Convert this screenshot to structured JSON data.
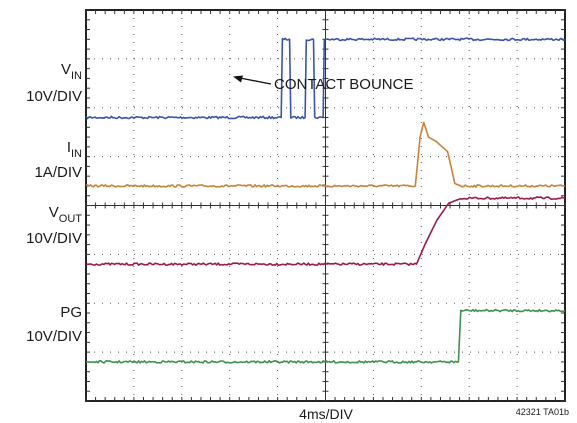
{
  "chart_data": {
    "type": "line",
    "title": "",
    "xlabel": "4ms/DIV",
    "ylabel": "",
    "x_unit": "ms",
    "x_range": [
      0,
      40
    ],
    "divisions": {
      "x": 10,
      "y": 8
    },
    "grid": true,
    "figure_code": "42321 TA01b",
    "annotation": {
      "text": "CONTACT BOUNCE"
    },
    "channels": [
      {
        "name": "VIN",
        "label_main": "V",
        "label_sub": "IN",
        "scale": "10V/DIV",
        "color": "#3a55a8"
      },
      {
        "name": "IIN",
        "label_main": "I",
        "label_sub": "IN",
        "scale": "1A/DIV",
        "color": "#c8823a"
      },
      {
        "name": "VOUT",
        "label_main": "V",
        "label_sub": "OUT",
        "scale": "10V/DIV",
        "color": "#9e1c44"
      },
      {
        "name": "PG",
        "label_main": "PG",
        "label_sub": "",
        "scale": "10V/DIV",
        "color": "#3f9050"
      }
    ],
    "series": [
      {
        "name": "VIN",
        "unit": "div",
        "x": [
          0,
          16.3,
          16.4,
          17.0,
          17.1,
          18.3,
          18.4,
          19.0,
          19.1,
          19.8,
          19.9,
          20.7,
          20.8,
          40
        ],
        "values": [
          -2.2,
          -2.2,
          -0.6,
          -0.6,
          -2.2,
          -2.2,
          -0.6,
          -0.6,
          -2.2,
          -2.2,
          -0.6,
          -0.6,
          -0.6,
          -0.6
        ]
      },
      {
        "name": "IIN",
        "unit": "div",
        "x": [
          0,
          27.5,
          27.9,
          28.2,
          28.6,
          29.3,
          30.2,
          30.8,
          31.3,
          40
        ],
        "values": [
          -3.6,
          -3.6,
          -2.6,
          -2.3,
          -2.6,
          -2.7,
          -2.9,
          -3.55,
          -3.6,
          -3.6
        ]
      },
      {
        "name": "VOUT",
        "unit": "div",
        "x": [
          0,
          27.6,
          28.3,
          29.3,
          30.3,
          31.4,
          31.9,
          40
        ],
        "values": [
          -5.2,
          -5.2,
          -4.8,
          -4.3,
          -3.95,
          -3.85,
          -3.85,
          -3.85
        ]
      },
      {
        "name": "PG",
        "unit": "div",
        "x": [
          0,
          31.1,
          31.3,
          40
        ],
        "values": [
          -7.2,
          -7.2,
          -6.15,
          -6.15
        ]
      }
    ]
  }
}
